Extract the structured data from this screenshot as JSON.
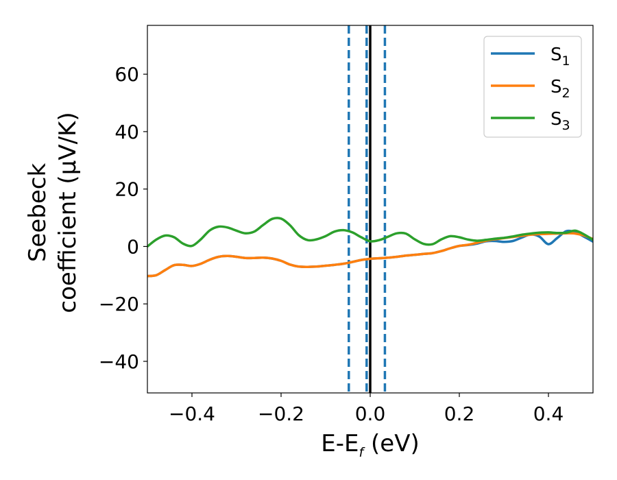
{
  "chart_data": {
    "type": "line",
    "title": "",
    "xlabel": {
      "main": "E-E",
      "sub": "f",
      "suffix": " (eV)"
    },
    "ylabel": {
      "line1": "Seebeck",
      "line2": "coefficient  (μV/K)"
    },
    "xlim": [
      -0.5,
      0.5
    ],
    "ylim": [
      -51,
      77
    ],
    "xticks": [
      -0.4,
      -0.2,
      0.0,
      0.2,
      0.4
    ],
    "xtick_labels": [
      "−0.4",
      "−0.2",
      "0.0",
      "0.2",
      "0.4"
    ],
    "yticks": [
      -40,
      -20,
      0,
      20,
      40,
      60
    ],
    "ytick_labels": [
      "−40",
      "−20",
      "0",
      "20",
      "40",
      "60"
    ],
    "grid": false,
    "legend_position": "top-right",
    "vertical_lines": [
      {
        "x": -0.048,
        "style": "dashed",
        "color": "#1f77b4"
      },
      {
        "x": -0.008,
        "style": "dashed",
        "color": "#1f77b4"
      },
      {
        "x": 0.0,
        "style": "solid",
        "color": "#000000"
      },
      {
        "x": 0.033,
        "style": "dashed",
        "color": "#1f77b4"
      }
    ],
    "series": [
      {
        "name": "S",
        "sub": "1",
        "color": "#1f77b4",
        "x": [
          -0.5,
          -0.48,
          -0.46,
          -0.44,
          -0.42,
          -0.4,
          -0.38,
          -0.36,
          -0.34,
          -0.32,
          -0.3,
          -0.28,
          -0.26,
          -0.24,
          -0.22,
          -0.2,
          -0.18,
          -0.16,
          -0.14,
          -0.12,
          -0.1,
          -0.08,
          -0.06,
          -0.04,
          -0.02,
          0.0,
          0.02,
          0.04,
          0.06,
          0.08,
          0.1,
          0.12,
          0.14,
          0.16,
          0.18,
          0.2,
          0.22,
          0.24,
          0.26,
          0.28,
          0.3,
          0.32,
          0.34,
          0.36,
          0.38,
          0.4,
          0.42,
          0.44,
          0.46,
          0.48,
          0.5
        ],
        "y": [
          -10.3,
          -10.0,
          -8.2,
          -6.5,
          -6.4,
          -6.8,
          -6.0,
          -4.6,
          -3.6,
          -3.3,
          -3.6,
          -4.0,
          -4.0,
          -3.9,
          -4.2,
          -5.0,
          -6.3,
          -7.0,
          -7.1,
          -7.0,
          -6.7,
          -6.4,
          -6.0,
          -5.4,
          -4.7,
          -4.3,
          -4.1,
          -3.9,
          -3.6,
          -3.2,
          -2.9,
          -2.6,
          -2.3,
          -1.6,
          -0.6,
          0.2,
          0.5,
          1.0,
          1.8,
          1.9,
          1.6,
          1.9,
          3.1,
          4.2,
          3.4,
          0.8,
          3.0,
          5.3,
          5.0,
          3.4,
          1.7
        ]
      },
      {
        "name": "S",
        "sub": "2",
        "color": "#ff7f0e",
        "x": [
          -0.5,
          -0.48,
          -0.46,
          -0.44,
          -0.42,
          -0.4,
          -0.38,
          -0.36,
          -0.34,
          -0.32,
          -0.3,
          -0.28,
          -0.26,
          -0.24,
          -0.22,
          -0.2,
          -0.18,
          -0.16,
          -0.14,
          -0.12,
          -0.1,
          -0.08,
          -0.06,
          -0.04,
          -0.02,
          0.0,
          0.02,
          0.04,
          0.06,
          0.08,
          0.1,
          0.12,
          0.14,
          0.16,
          0.18,
          0.2,
          0.22,
          0.24,
          0.26,
          0.28,
          0.3,
          0.32,
          0.34,
          0.36,
          0.38,
          0.4,
          0.42,
          0.44,
          0.46,
          0.48,
          0.5
        ],
        "y": [
          -10.3,
          -10.0,
          -8.2,
          -6.5,
          -6.4,
          -6.8,
          -6.0,
          -4.6,
          -3.6,
          -3.3,
          -3.6,
          -4.0,
          -4.0,
          -3.9,
          -4.2,
          -5.0,
          -6.3,
          -7.0,
          -7.1,
          -7.0,
          -6.7,
          -6.4,
          -6.0,
          -5.4,
          -4.7,
          -4.3,
          -4.1,
          -3.9,
          -3.6,
          -3.2,
          -2.9,
          -2.6,
          -2.3,
          -1.6,
          -0.6,
          0.2,
          0.6,
          1.3,
          2.0,
          2.5,
          2.9,
          3.3,
          3.7,
          4.1,
          4.3,
          4.4,
          4.5,
          4.6,
          4.5,
          3.8,
          2.6
        ]
      },
      {
        "name": "S",
        "sub": "3",
        "color": "#2ca02c",
        "x": [
          -0.5,
          -0.48,
          -0.46,
          -0.44,
          -0.42,
          -0.4,
          -0.38,
          -0.36,
          -0.34,
          -0.32,
          -0.3,
          -0.28,
          -0.26,
          -0.24,
          -0.22,
          -0.2,
          -0.18,
          -0.16,
          -0.14,
          -0.12,
          -0.1,
          -0.08,
          -0.06,
          -0.04,
          -0.02,
          0.0,
          0.02,
          0.04,
          0.06,
          0.08,
          0.1,
          0.12,
          0.14,
          0.16,
          0.18,
          0.2,
          0.22,
          0.24,
          0.26,
          0.28,
          0.3,
          0.32,
          0.34,
          0.36,
          0.38,
          0.4,
          0.42,
          0.44,
          0.46,
          0.48,
          0.5
        ],
        "y": [
          0.0,
          2.4,
          3.8,
          3.2,
          1.0,
          0.2,
          2.5,
          5.6,
          6.9,
          6.6,
          5.5,
          4.6,
          5.2,
          7.5,
          9.6,
          9.7,
          7.4,
          3.9,
          2.2,
          2.5,
          3.6,
          5.2,
          5.7,
          4.9,
          3.2,
          1.8,
          2.2,
          3.4,
          4.6,
          4.5,
          2.5,
          0.9,
          0.8,
          2.5,
          3.6,
          3.2,
          2.4,
          2.0,
          2.3,
          2.7,
          3.0,
          3.5,
          4.1,
          4.5,
          4.8,
          4.9,
          4.7,
          4.8,
          5.5,
          4.2,
          2.3
        ]
      }
    ]
  }
}
